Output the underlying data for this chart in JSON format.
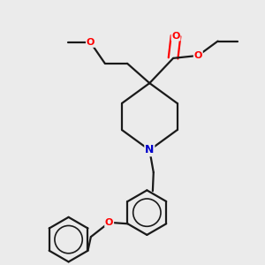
{
  "bg_color": "#ebebeb",
  "bond_color": "#1a1a1a",
  "oxygen_color": "#ff0000",
  "nitrogen_color": "#0000cc",
  "lw": 1.6,
  "figsize": [
    3.0,
    3.0
  ],
  "dpi": 100,
  "xlim": [
    0.0,
    1.0
  ],
  "ylim": [
    0.0,
    1.0
  ]
}
